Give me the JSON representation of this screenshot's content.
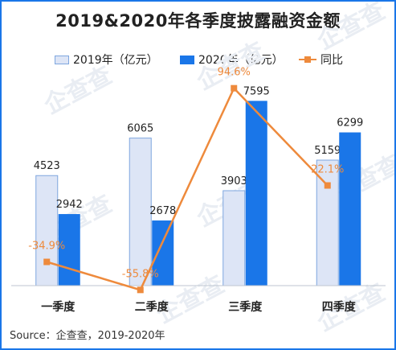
{
  "chart_data": {
    "type": "bar",
    "title": "2019&2020年各季度披露融资金额",
    "categories": [
      "一季度",
      "二季度",
      "三季度",
      "四季度"
    ],
    "series": [
      {
        "name": "2019年（亿元）",
        "type": "bar",
        "color": "#dde5f6",
        "border": "#7ea6df",
        "values": [
          4523,
          6065,
          3903,
          5159
        ]
      },
      {
        "name": "2020年（亿元）",
        "type": "bar",
        "color": "#1a76e8",
        "values": [
          2942,
          2678,
          7595,
          6299
        ]
      },
      {
        "name": "同比",
        "type": "line",
        "color": "#ee8a3c",
        "values": [
          -34.9,
          -55.8,
          94.6,
          22.1
        ],
        "labels": [
          "-34.9%",
          "-55.8%",
          "94.6%",
          "22.1%"
        ]
      }
    ],
    "bar_ylim": [
      0,
      8500
    ],
    "line_ylim": [
      -70,
      110
    ]
  },
  "source": "Source：企查查，2019-2020年",
  "watermark": "企查查"
}
